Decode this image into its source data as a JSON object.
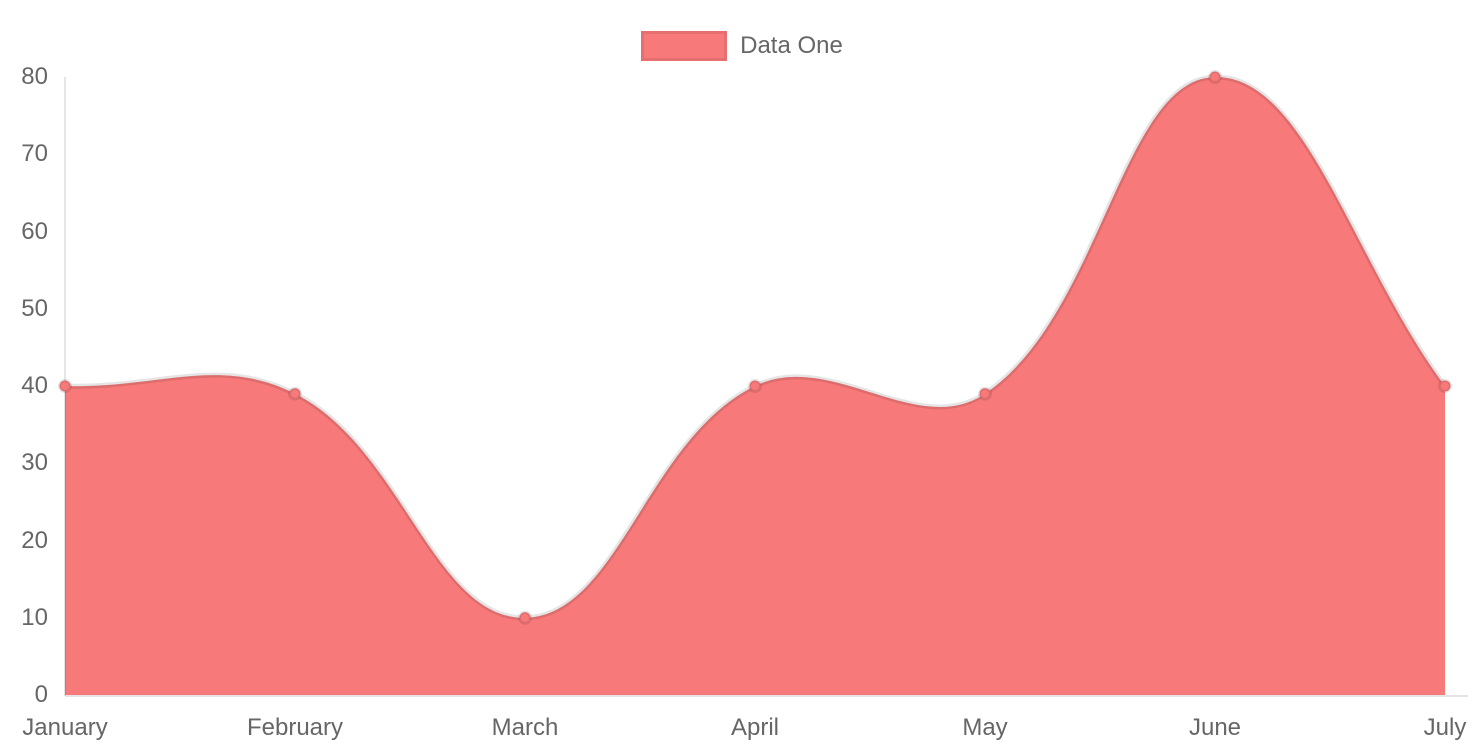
{
  "chart_data": {
    "type": "area",
    "style": "chartjs-filled-line",
    "categories": [
      "January",
      "February",
      "March",
      "April",
      "May",
      "June",
      "July"
    ],
    "series": [
      {
        "name": "Data One",
        "values": [
          40,
          39,
          10,
          40,
          39,
          80,
          40
        ]
      }
    ],
    "yticks": [
      0,
      10,
      20,
      30,
      40,
      50,
      60,
      70,
      80
    ],
    "ylim": [
      0,
      80
    ],
    "grid": false,
    "bezier_tension": 0.4,
    "legend_position": "top",
    "colors": {
      "fill": "#f87979",
      "line": "rgba(0,0,0,0.10)",
      "point_fill": "#f87979",
      "point_border": "rgba(0,0,0,0.10)",
      "axis_line": "rgba(0,0,0,0.10)",
      "tick_text": "#666666",
      "legend_text": "#666666",
      "legend_swatch_border": "rgba(0,0,0,0.07)"
    }
  }
}
